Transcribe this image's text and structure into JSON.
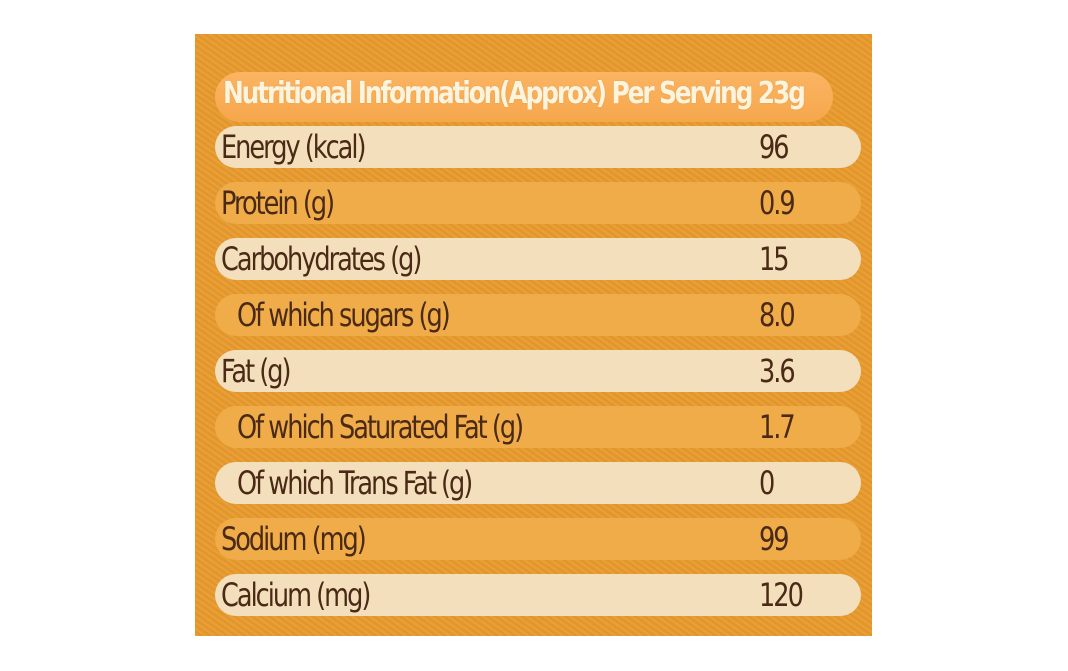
{
  "title": "Nutritional Information(Approx) Per Serving 23g",
  "rows": [
    {
      "label": "Energy (kcal)",
      "value": "96"
    },
    {
      "label": "Protein (g)",
      "value": "0.9"
    },
    {
      "label": "Carbohydrates (g)",
      "value": "15"
    },
    {
      "label": "Of which sugars (g)",
      "value": "8.0"
    },
    {
      "label": "Fat (g)",
      "value": "3.6"
    },
    {
      "label": "Of which Saturated Fat (g)",
      "value": "1.7"
    },
    {
      "label": "Of which Trans Fat (g)",
      "value": "0"
    },
    {
      "label": "Sodium (mg)",
      "value": "99"
    },
    {
      "label": "Calcium (mg)",
      "value": "120"
    }
  ],
  "colors": {
    "panel": "#e89a2c",
    "row_light": "#f4dfbd",
    "row_dark": "#f0ac48",
    "header_fill": "#f6a74c",
    "header_text": "#fdf4de",
    "body_text": "#4a2a16"
  }
}
